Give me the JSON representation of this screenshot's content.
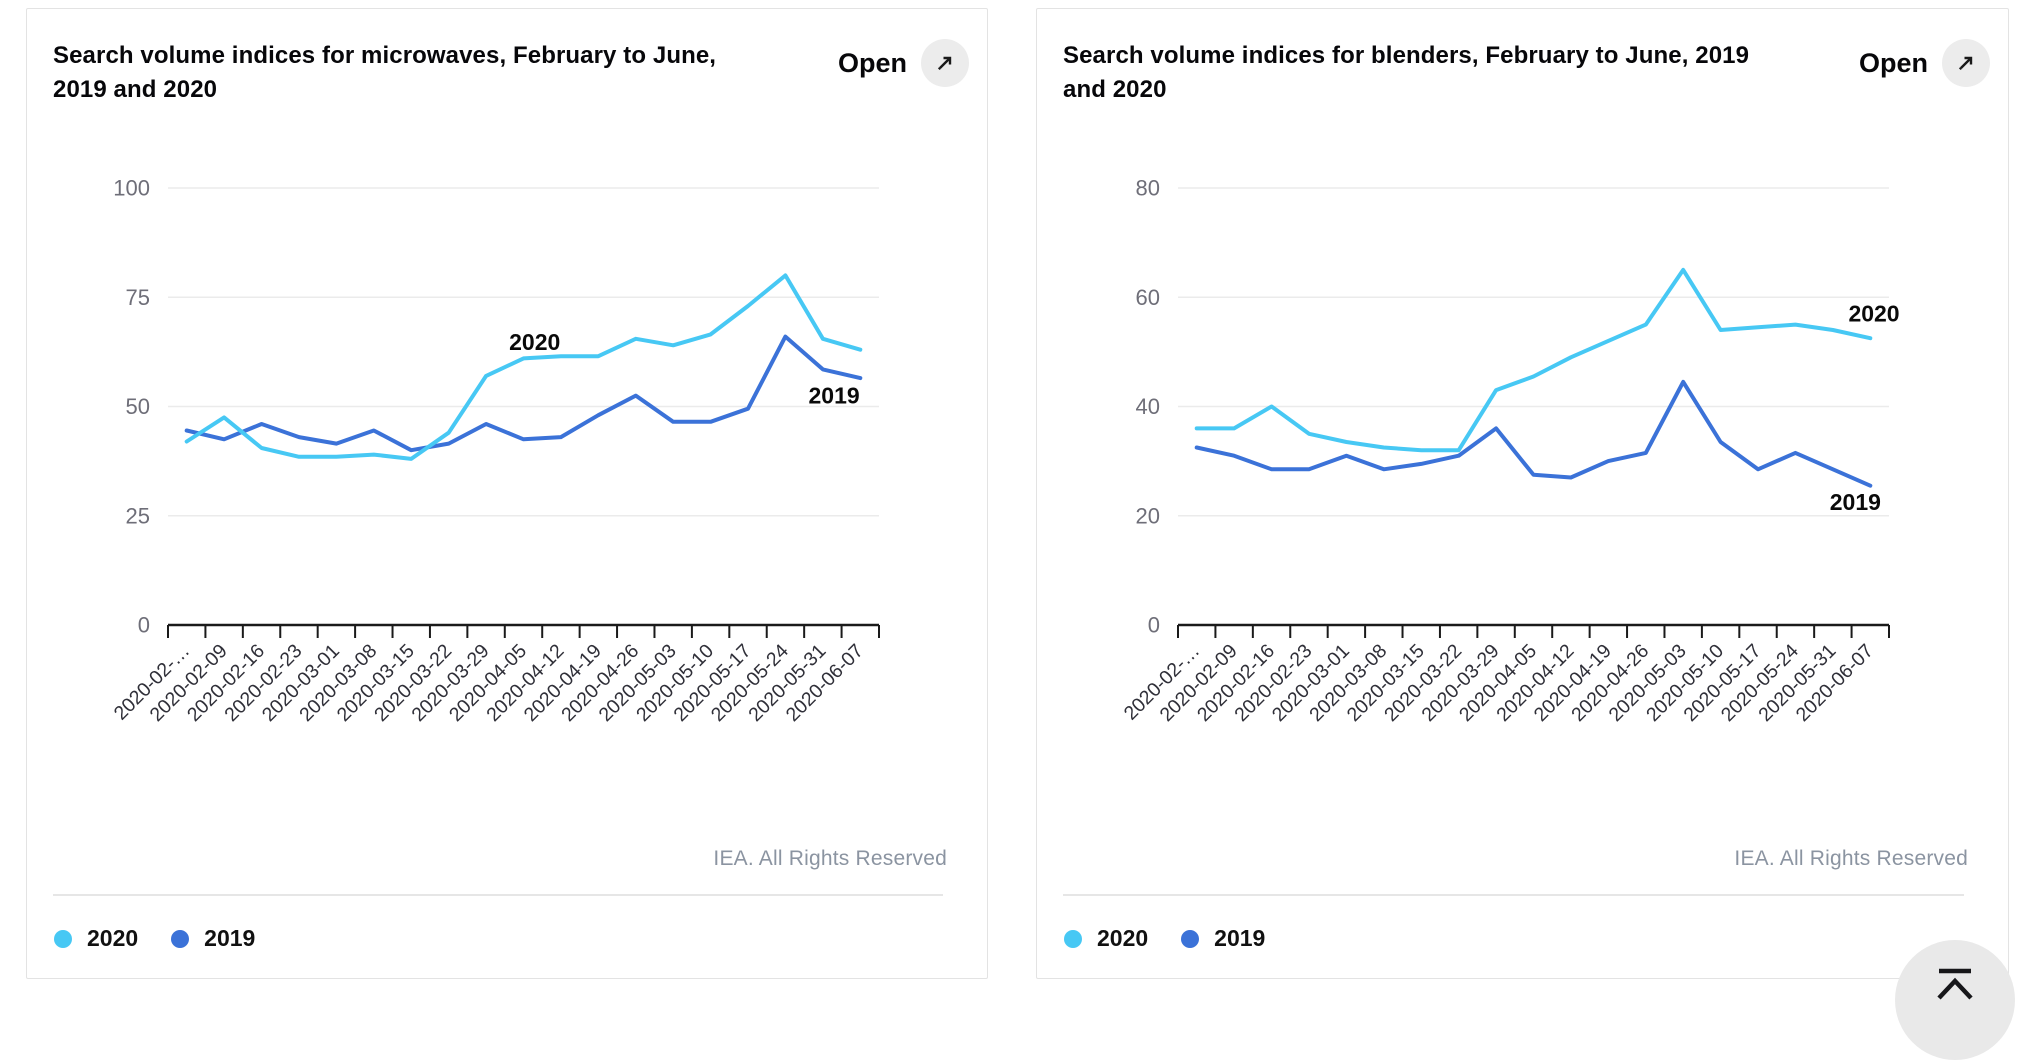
{
  "ui": {
    "open_label": "Open",
    "credit": "IEA. All Rights Reserved"
  },
  "colors": {
    "series_2020": "#47c8f4",
    "series_2019": "#3b72d8",
    "gridline": "#ebebeb",
    "axis": "#1a1a1a",
    "y_label": "#6e6e78",
    "x_label": "#2f2f38",
    "annotation": "#0a0a0a",
    "open_circle_bg": "#ececec",
    "scroll_button_bg": "#e9e9e9"
  },
  "chart_data": [
    {
      "type": "line",
      "title": "Search volume indices for microwaves, February to June, 2019 and 2020",
      "categories": [
        "2020-02-…",
        "2020-02-09",
        "2020-02-16",
        "2020-02-23",
        "2020-03-01",
        "2020-03-08",
        "2020-03-15",
        "2020-03-22",
        "2020-03-29",
        "2020-04-05",
        "2020-04-12",
        "2020-04-19",
        "2020-04-26",
        "2020-05-03",
        "2020-05-10",
        "2020-05-17",
        "2020-05-24",
        "2020-05-31",
        "2020-06-07"
      ],
      "series": [
        {
          "name": "2020",
          "color": "#47c8f4",
          "values": [
            42,
            47.5,
            40.5,
            38.5,
            38.5,
            39,
            38,
            44,
            57,
            61,
            61.5,
            61.5,
            65.5,
            64,
            66.5,
            73,
            80,
            65.5,
            63
          ]
        },
        {
          "name": "2019",
          "color": "#3b72d8",
          "values": [
            44.5,
            42.5,
            46,
            43,
            41.5,
            44.5,
            40,
            41.5,
            46,
            42.5,
            43,
            48,
            52.5,
            46.5,
            46.5,
            49.5,
            66,
            58.5,
            56.5
          ]
        }
      ],
      "xlabel": "",
      "ylabel": "",
      "ylim": [
        0,
        100
      ],
      "yticks": [
        0,
        25,
        50,
        75,
        100
      ],
      "grid": true,
      "legend_position": "bottom",
      "annotations": [
        {
          "text": "2020",
          "xi": 9.3,
          "v": 64.8
        },
        {
          "text": "2019",
          "xi": 17.3,
          "v": 52.5
        }
      ]
    },
    {
      "type": "line",
      "title": "Search volume indices for blenders, February to June, 2019 and 2020",
      "categories": [
        "2020-02-…",
        "2020-02-09",
        "2020-02-16",
        "2020-02-23",
        "2020-03-01",
        "2020-03-08",
        "2020-03-15",
        "2020-03-22",
        "2020-03-29",
        "2020-04-05",
        "2020-04-12",
        "2020-04-19",
        "2020-04-26",
        "2020-05-03",
        "2020-05-10",
        "2020-05-17",
        "2020-05-24",
        "2020-05-31",
        "2020-06-07"
      ],
      "series": [
        {
          "name": "2020",
          "color": "#47c8f4",
          "values": [
            36,
            36,
            40,
            35,
            33.5,
            32.5,
            32,
            32,
            43,
            45.5,
            49,
            52,
            55,
            65,
            54,
            54.5,
            55,
            54,
            52.5
          ]
        },
        {
          "name": "2019",
          "color": "#3b72d8",
          "values": [
            32.5,
            31,
            28.5,
            28.5,
            31,
            28.5,
            29.5,
            31,
            36,
            27.5,
            27,
            30,
            31.5,
            44.5,
            33.5,
            28.5,
            31.5,
            28.5,
            25.5
          ]
        }
      ],
      "xlabel": "",
      "ylabel": "",
      "ylim": [
        0,
        80
      ],
      "yticks": [
        0,
        20,
        40,
        60,
        80
      ],
      "grid": true,
      "legend_position": "bottom",
      "annotations": [
        {
          "text": "2020",
          "xi": 18.1,
          "v": 57
        },
        {
          "text": "2019",
          "xi": 17.6,
          "v": 22.5
        }
      ]
    }
  ]
}
